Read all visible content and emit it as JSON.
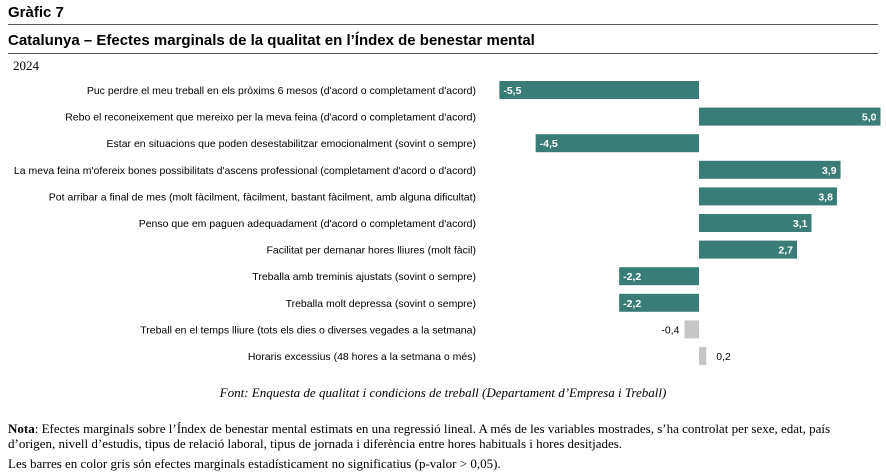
{
  "header": {
    "chart_number": "Gràfic 7",
    "title": "Catalunya – Efectes marginals de la qualitat en l’Índex de benestar mental",
    "year": "2024"
  },
  "colors": {
    "significant": "#3a7d77",
    "not_significant": "#c6c6c6"
  },
  "chart_data": {
    "type": "bar",
    "orientation": "horizontal",
    "categories": [
      "Puc perdre el meu treball en els pròxims 6 mesos (d'acord o completament d'acord)",
      "Rebo el reconeixement que mereixo per la meva feina (d'acord o completament d'acord)",
      "Estar en situacions que poden desestabilitzar emocionalment (sovint o sempre)",
      "La meva feina m'ofereix bones possibilitats d'ascens professional (completament d'acord o d'acord)",
      "Pot arribar a final de mes (molt fàcilment, fàcilment, bastant fàcilment, amb alguna dificultat)",
      "Penso que em paguen adequadament (d'acord o completament d'acord)",
      "Facilitat per demanar hores lliures (molt fàcil)",
      "Treballa amb treminis ajustats (sovint o sempre)",
      "Treballa molt depressa (sovint o sempre)",
      "Treball en el temps lliure (tots els dies o diverses vegades a la setmana)",
      "Horaris excessius (48 hores a la setmana o més)"
    ],
    "values": [
      -5.5,
      5.0,
      -4.5,
      3.9,
      3.8,
      3.1,
      2.7,
      -2.2,
      -2.2,
      -0.4,
      0.2
    ],
    "labels": [
      "-5,5",
      "5,0",
      "-4,5",
      "3,9",
      "3,8",
      "3,1",
      "2,7",
      "-2,2",
      "-2,2",
      "-0,4",
      "0,2"
    ],
    "significant": [
      true,
      true,
      true,
      true,
      true,
      true,
      true,
      true,
      true,
      false,
      false
    ],
    "xlim": [
      -5.5,
      5.0
    ],
    "grid": false,
    "legend": "none"
  },
  "footer": {
    "source": "Font: Enquesta de qualitat i condicions de treball (Departament d’Empresa i Treball)",
    "note_label": "Nota",
    "note_text": ": Efectes marginals sobre l’Índex de benestar mental estimats en una regressió lineal. A més de les variables mostrades, s’ha controlat per sexe, edat, país d’origen, nivell d’estudis, tipus de relació laboral, tipus de jornada i diferència entre hores habituals i hores desitjades.",
    "note2": "Les barres en color gris són efectes marginals estadísticament no significatius (p-valor > 0,05)."
  }
}
